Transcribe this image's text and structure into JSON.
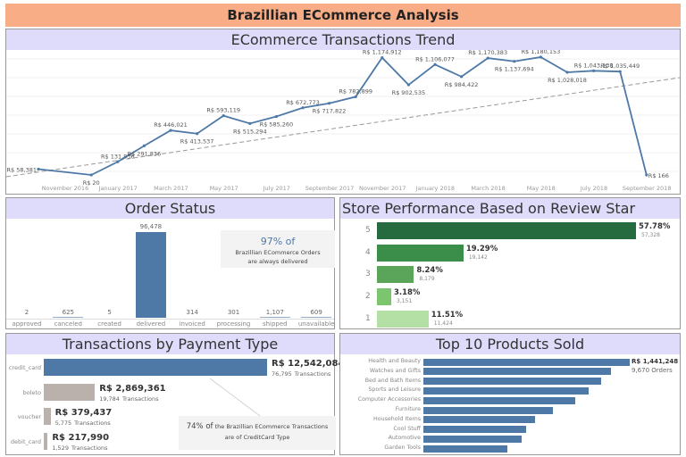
{
  "title": "Brazillian ECommerce Analysis",
  "trend": {
    "title": "ECommerce Transactions Trend",
    "chart_data": {
      "type": "line",
      "x_ticks": [
        "November 2016",
        "January 2017",
        "March 2017",
        "May 2017",
        "July 2017",
        "September 2017",
        "November 2017",
        "January 2018",
        "March 2018",
        "May 2018",
        "July 2018",
        "September 2018"
      ],
      "points": [
        {
          "x": "2016-10",
          "y": 58381,
          "label": "R$ 58,381"
        },
        {
          "x": "2016-12",
          "y": 20,
          "label": "R$ 20"
        },
        {
          "x": "2017-01",
          "y": 131836,
          "label": "R$ 131,836"
        },
        {
          "x": "2017-02",
          "y": 291836,
          "label": "R$ 291,836"
        },
        {
          "x": "2017-03",
          "y": 446021,
          "label": "R$ 446,021"
        },
        {
          "x": "2017-04",
          "y": 413537,
          "label": "R$ 413,537"
        },
        {
          "x": "2017-05",
          "y": 593119,
          "label": "R$ 593,119"
        },
        {
          "x": "2017-06",
          "y": 515294,
          "label": "R$ 515,294"
        },
        {
          "x": "2017-07",
          "y": 585260,
          "label": "R$ 585,260"
        },
        {
          "x": "2017-08",
          "y": 672773,
          "label": "R$ 672,773"
        },
        {
          "x": "2017-09",
          "y": 717822,
          "label": "R$ 717,822"
        },
        {
          "x": "2017-10",
          "y": 782899,
          "label": "R$ 782,899"
        },
        {
          "x": "2017-11",
          "y": 1174912,
          "label": "R$ 1,174,912"
        },
        {
          "x": "2017-12",
          "y": 902535,
          "label": "R$ 902,535"
        },
        {
          "x": "2018-01",
          "y": 1106077,
          "label": "R$ 1,106,077"
        },
        {
          "x": "2018-02",
          "y": 984422,
          "label": "R$ 984,422"
        },
        {
          "x": "2018-03",
          "y": 1170383,
          "label": "R$ 1,170,383"
        },
        {
          "x": "2018-04",
          "y": 1137694,
          "label": "R$ 1,137,694"
        },
        {
          "x": "2018-05",
          "y": 1180153,
          "label": "R$ 1,180,153"
        },
        {
          "x": "2018-06",
          "y": 1028018,
          "label": "R$ 1,028,018"
        },
        {
          "x": "2018-07",
          "y": 1043138,
          "label": "R$ 1,043,138"
        },
        {
          "x": "2018-08",
          "y": 1035449,
          "label": "R$ 1,035,449"
        },
        {
          "x": "2018-09",
          "y": 166,
          "label": "R$ 166"
        }
      ],
      "trend_line": true,
      "color": "#4e79a7"
    }
  },
  "order_status": {
    "title": "Order Status",
    "chart_data": {
      "type": "bar",
      "categories": [
        "approved",
        "canceled",
        "created",
        "delivered",
        "invoiced",
        "processing",
        "shipped",
        "unavailable"
      ],
      "values": [
        2,
        625,
        5,
        96478,
        314,
        301,
        1107,
        609
      ],
      "labels": [
        "2",
        "625",
        "5",
        "96,478",
        "314",
        "301",
        "1,107",
        "609"
      ],
      "color": "#4e79a7"
    },
    "note": {
      "pct": "97% of",
      "line1": "Brazillian ECommerce Orders",
      "line2": "are always delivered"
    }
  },
  "review": {
    "title": "Store Performance Based on Review Star",
    "chart_data": {
      "type": "bar",
      "categories": [
        "5",
        "4",
        "3",
        "2",
        "1"
      ],
      "values": [
        57.78,
        19.29,
        8.24,
        3.18,
        11.51
      ],
      "pct_labels": [
        "57.78%",
        "19.29%",
        "8.24%",
        "3.18%",
        "11.51%"
      ],
      "counts": [
        "57,328",
        "19,142",
        "8,179",
        "3,151",
        "11,424"
      ],
      "colors": [
        "#256b3f",
        "#3a8e49",
        "#5aa55a",
        "#7cc56f",
        "#b4e0a5"
      ]
    }
  },
  "payment": {
    "title": "Transactions by Payment Type",
    "chart_data": {
      "type": "bar",
      "categories": [
        "credit_card",
        "boleto",
        "voucher",
        "debit_card"
      ],
      "values": [
        12542084,
        2869361,
        379437,
        217990
      ],
      "value_labels": [
        "R$ 12,542,084",
        "R$ 2,869,361",
        "R$ 379,437",
        "R$ 217,990"
      ],
      "transactions": [
        "76,795",
        "19,784",
        "5,775",
        "1,529"
      ],
      "colors": [
        "#4e79a7",
        "#bab0ac",
        "#bab0ac",
        "#bab0ac"
      ]
    },
    "transactions_word": "Transactions",
    "note": {
      "pct": "74% of",
      "rest": " the Brazillian ECommerce Transactions",
      "line2": "are of CreditCard Type"
    }
  },
  "products": {
    "title": "Top 10 Products Sold",
    "chart_data": {
      "type": "bar",
      "categories": [
        "Health and Beauty",
        "Watches and Gifts",
        "Bed and Bath Items",
        "Sports and Leisure",
        "Computer Accessories",
        "Furniture",
        "Household Items",
        "Cool Stuff",
        "Automotive",
        "Garden Tools"
      ],
      "values": [
        1441248,
        1310000,
        1241000,
        1154000,
        1061000,
        905000,
        780000,
        718000,
        686000,
        586000
      ],
      "color": "#4e79a7"
    },
    "top_value": "R$ 1,441,248",
    "top_orders": "9,670 Orders"
  }
}
